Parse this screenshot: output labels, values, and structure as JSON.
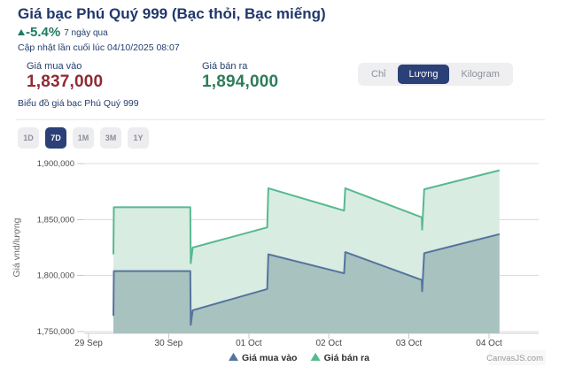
{
  "header": {
    "title": "Giá bạc Phú Quý 999 (Bạc thỏi, Bạc miếng)",
    "change_percent": "-5.4%",
    "change_direction": "down",
    "change_color": "#1e7b60",
    "change_period": "7 ngày qua",
    "updated": "Cập nhật lần cuối lúc 04/10/2025 08:07"
  },
  "prices": {
    "buy": {
      "label": "Giá mua vào",
      "value": "1,837,000",
      "color": "#8f2a33"
    },
    "sell": {
      "label": "Giá bán ra",
      "value": "1,894,000",
      "color": "#2e7d5b"
    }
  },
  "unit_toggle": {
    "selected": "Lượng",
    "selected_color": "#2b4077",
    "options": [
      {
        "id": "chi",
        "label": "Chỉ",
        "selected": false
      },
      {
        "id": "luong",
        "label": "Lượng",
        "selected": true
      },
      {
        "id": "kilogram",
        "label": "Kilogram",
        "selected": false
      }
    ]
  },
  "chart_section_label": "Biểu đồ giá bạc Phú Quý 999",
  "range_selector": {
    "selected": "7D",
    "options": [
      {
        "id": "1d",
        "label": "1D",
        "selected": false
      },
      {
        "id": "7d",
        "label": "7D",
        "selected": true
      },
      {
        "id": "1m",
        "label": "1M",
        "selected": false
      },
      {
        "id": "3m",
        "label": "3M",
        "selected": false
      },
      {
        "id": "1y",
        "label": "1Y",
        "selected": false
      }
    ]
  },
  "chart_data": {
    "type": "area",
    "grid": true,
    "legend_position": "bottom",
    "ylabel": "Giá vnd/lượng",
    "y_axis": {
      "min": 1750000,
      "max": 1900000,
      "ticks": [
        {
          "label": "1,900,000",
          "value": 1900000
        },
        {
          "label": "1,850,000",
          "value": 1850000
        },
        {
          "label": "1,800,000",
          "value": 1800000
        },
        {
          "label": "1,750,000",
          "value": 1750000
        }
      ]
    },
    "x_axis": {
      "ticks": [
        {
          "label": "29 Sep",
          "d": 0
        },
        {
          "label": "30 Sep",
          "d": 1
        },
        {
          "label": "01 Oct",
          "d": 2
        },
        {
          "label": "02 Oct",
          "d": 3
        },
        {
          "label": "03 Oct",
          "d": 4
        },
        {
          "label": "04 Oct",
          "d": 5
        }
      ]
    },
    "series": [
      {
        "id": "gia-mua-vao",
        "name": "Giá mua vào",
        "line_color": "#54749f",
        "fill_color": "rgba(90,125,135,0.38)",
        "points": [
          [
            0.31,
            1764000
          ],
          [
            0.315,
            1804000
          ],
          [
            1.27,
            1804000
          ],
          [
            1.275,
            1756000
          ],
          [
            1.3,
            1769000
          ],
          [
            2.23,
            1788000
          ],
          [
            2.245,
            1819000
          ],
          [
            3.19,
            1802000
          ],
          [
            3.205,
            1821000
          ],
          [
            4.16,
            1796000
          ],
          [
            4.165,
            1786000
          ],
          [
            4.19,
            1820000
          ],
          [
            5.13,
            1837000
          ]
        ]
      },
      {
        "id": "gia-ban-ra",
        "name": "Giá bán ra",
        "line_color": "#57b990",
        "fill_color": "#d9ece2",
        "points": [
          [
            0.31,
            1819000
          ],
          [
            0.315,
            1861000
          ],
          [
            1.27,
            1861000
          ],
          [
            1.275,
            1811000
          ],
          [
            1.3,
            1825000
          ],
          [
            2.23,
            1843000
          ],
          [
            2.245,
            1878000
          ],
          [
            3.19,
            1858000
          ],
          [
            3.205,
            1878000
          ],
          [
            4.16,
            1852000
          ],
          [
            4.165,
            1841000
          ],
          [
            4.19,
            1877000
          ],
          [
            5.13,
            1894000
          ]
        ]
      }
    ],
    "legend": [
      {
        "series_id": "gia-mua-vao",
        "label": "Giá mua vào",
        "color": "#54749f"
      },
      {
        "series_id": "gia-ban-ra",
        "label": "Giá bán ra",
        "color": "#57b990"
      }
    ]
  },
  "watermark": "CanvasJS.com"
}
